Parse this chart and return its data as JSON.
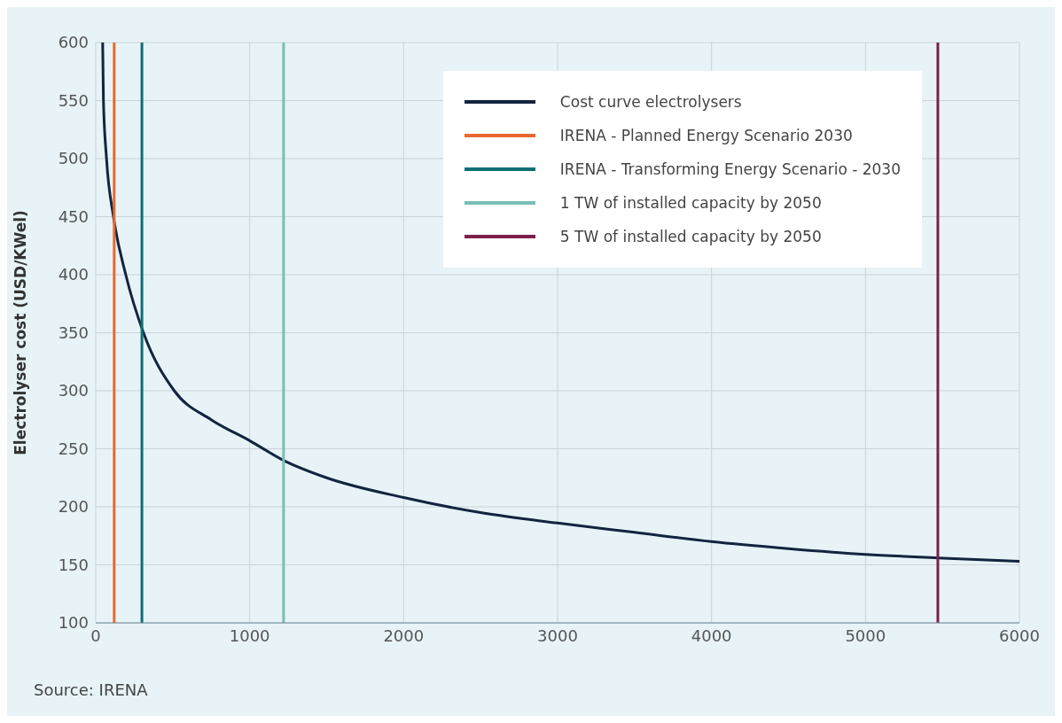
{
  "chart_data": {
    "type": "line",
    "ylabel": "Electrolyser cost (USD/KWel)",
    "xlim": [
      0,
      6000
    ],
    "xticks": [
      0,
      1000,
      2000,
      3000,
      4000,
      5000,
      6000
    ],
    "ylim": [
      100,
      600
    ],
    "yticks": [
      100,
      150,
      200,
      250,
      300,
      350,
      400,
      450,
      500,
      550,
      600
    ],
    "grid": true,
    "legend": "top right",
    "marker": "none",
    "line_style": "solid",
    "series": [
      {
        "name": "Cost curve electrolysers",
        "color": "#13243f",
        "x": [
          45,
          50,
          70,
          115,
          195,
          310,
          510,
          750,
          1000,
          1220,
          1500,
          2000,
          2500,
          3000,
          3500,
          4000,
          4500,
          5000,
          5470,
          6000
        ],
        "values": [
          600,
          550,
          500,
          450,
          400,
          350,
          300,
          275,
          257,
          240,
          225,
          208,
          195,
          186,
          178,
          170,
          164,
          159,
          156,
          153
        ]
      },
      {
        "name": "IRENA - Planned Energy Scenario 2030",
        "color": "#e8692f",
        "x": [
          120,
          120
        ],
        "values": [
          100,
          600
        ]
      },
      {
        "name": "IRENA - Transforming Energy Scenario - 2030",
        "color": "#0e6f75",
        "x": [
          300,
          300
        ],
        "values": [
          100,
          600
        ]
      },
      {
        "name": "1 TW of installed capacity by 2050",
        "color": "#79bfb4",
        "x": [
          1220,
          1220
        ],
        "values": [
          100,
          600
        ]
      },
      {
        "name": "5 TW of installed capacity by 2050",
        "color": "#7d1f4a",
        "x": [
          5470,
          5470
        ],
        "values": [
          100,
          600
        ]
      }
    ],
    "annotations": [
      "Source: IRENA"
    ]
  }
}
